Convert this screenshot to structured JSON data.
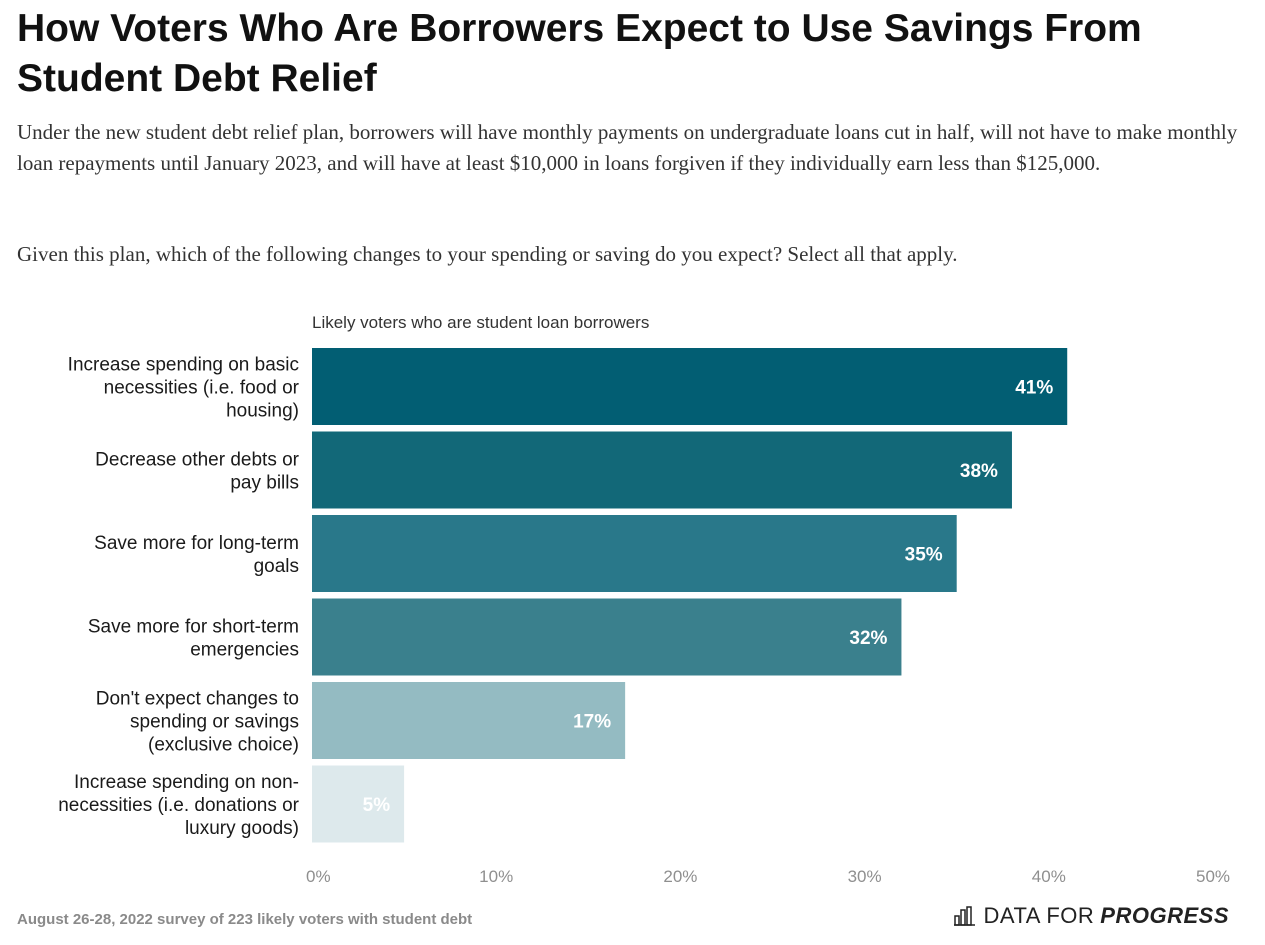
{
  "title": "How Voters Who Are Borrowers Expect to Use Savings From Student Debt Relief",
  "subtitle": "Under the new student debt relief plan, borrowers will have monthly payments on undergraduate loans cut in half, will not have to make monthly loan repayments until January 2023, and will have at least $10,000 in loans forgiven if they individually earn less than $125,000.",
  "question": "Given this plan, which of the following changes to your spending or saving do you expect? Select all that apply.",
  "footer": {
    "source": "August 26-28, 2022 survey of 223 likely voters with student debt",
    "brand_part1": "DATA FOR",
    "brand_part2": "PROGRESS",
    "brand_icon": "bar-chart-icon"
  },
  "chart_data": {
    "type": "bar",
    "orientation": "horizontal",
    "series_label": "Likely voters who are student loan borrowers",
    "categories": [
      [
        "Increase spending on basic",
        "necessities (i.e. food or",
        "housing)"
      ],
      [
        "Decrease other debts or",
        "pay bills"
      ],
      [
        "Save more for long-term",
        "goals"
      ],
      [
        "Save more for short-term",
        "emergencies"
      ],
      [
        "Don't expect changes to",
        "spending or savings",
        "(exclusive choice)"
      ],
      [
        "Increase spending on non-",
        "necessities (i.e. donations or",
        "luxury goods)"
      ]
    ],
    "values": [
      41,
      38,
      35,
      32,
      17,
      5
    ],
    "value_labels": [
      "41%",
      "38%",
      "35%",
      "32%",
      "17%",
      "5%"
    ],
    "bar_colors": [
      "#025e73",
      "#126878",
      "#29788a",
      "#3a808d",
      "#94bbc2",
      "#dde9ec"
    ],
    "xlim": [
      0,
      50
    ],
    "ticks": [
      0,
      10,
      20,
      30,
      40,
      50
    ],
    "tick_labels": [
      "0%",
      "10%",
      "20%",
      "30%",
      "40%",
      "50%"
    ],
    "grid": false
  }
}
